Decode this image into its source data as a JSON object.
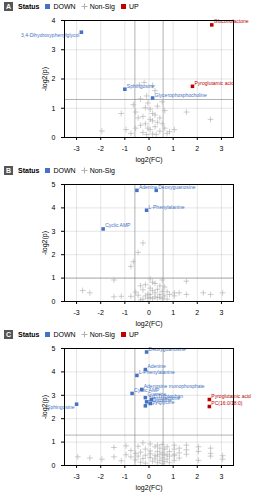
{
  "chart_data": [
    {
      "type": "scatter",
      "title": "A",
      "xlabel": "log2(FC)",
      "ylabel": "-log2(p)",
      "xlim": [
        -3.5,
        3.5
      ],
      "ylim": [
        0,
        4.0
      ],
      "xticks": [
        -3,
        -2,
        -1,
        0,
        1,
        2,
        3
      ],
      "yticks": [
        0,
        1,
        2,
        3,
        4
      ],
      "grid": true,
      "legend": "top",
      "legend_title": "Status",
      "reference_lines": {
        "x": [
          -0.585,
          0.585
        ],
        "y": [
          1.3
        ],
        "color": "#808080"
      },
      "series": [
        {
          "name": "DOWN",
          "color": "#4472C4",
          "marker": "square",
          "x": [
            -2.8,
            -1.0,
            0.15
          ],
          "values": [
            3.6,
            1.65,
            1.35
          ],
          "labels": [
            "3,4-Dihydroxyphenylglycol",
            "Sphingosine",
            "Glycerophosphocholine"
          ]
        },
        {
          "name": "Non-Sig",
          "color": "#B0B0B0",
          "marker": "plus",
          "x": [
            -0.4,
            -0.2,
            0.15,
            0.25,
            -0.1,
            -0.35,
            0.55,
            -0.65,
            -0.15,
            0.05,
            0.35,
            -0.05,
            0.65,
            -0.55,
            1.55,
            -1.15,
            0.15,
            0.25,
            -0.25,
            -0.45,
            0.45,
            0.05,
            0.15,
            0.35,
            -0.15,
            0.55,
            -0.35,
            0.25,
            -0.05,
            0.05,
            -0.55,
            0.65,
            -0.95,
            1.05,
            2.55,
            -1.95,
            0.45,
            -0.25,
            0.15,
            -0.75,
            0.75,
            0.85,
            -0.1,
            0.3
          ],
          "values": [
            1.8,
            1.88,
            1.78,
            1.6,
            1.42,
            1.32,
            1.22,
            1.12,
            1.02,
            0.97,
            1.07,
            1.18,
            0.92,
            0.87,
            0.87,
            0.82,
            0.82,
            0.77,
            0.72,
            0.67,
            0.67,
            0.62,
            0.57,
            0.52,
            0.47,
            0.47,
            0.42,
            0.37,
            0.32,
            0.27,
            0.32,
            0.32,
            0.27,
            0.27,
            0.62,
            0.22,
            0.22,
            0.17,
            0.12,
            0.14,
            0.14,
            0.2,
            0.1,
            0.1
          ]
        },
        {
          "name": "UP",
          "color": "#C00000",
          "marker": "square",
          "x": [
            2.6,
            1.8
          ],
          "values": [
            3.85,
            1.75
          ],
          "labels": [
            "Gluconolactone",
            "Pyroglutamic acid"
          ]
        }
      ]
    },
    {
      "type": "scatter",
      "title": "B",
      "xlabel": "log2(FC)",
      "ylabel": "-log2(p)",
      "xlim": [
        -3.5,
        3.5
      ],
      "ylim": [
        0,
        5.0
      ],
      "xticks": [
        -3,
        -2,
        -1,
        0,
        1,
        2,
        3
      ],
      "yticks": [
        0,
        1,
        2,
        3,
        4,
        5
      ],
      "grid": true,
      "legend": "top",
      "legend_title": "Status",
      "reference_lines": {
        "x": [
          -0.585,
          0.585
        ],
        "y": [
          1.0
        ],
        "color": "#808080"
      },
      "series": [
        {
          "name": "DOWN",
          "color": "#4472C4",
          "marker": "square",
          "x": [
            -0.5,
            0.3,
            -0.1,
            -1.9
          ],
          "values": [
            4.75,
            4.75,
            3.9,
            3.1
          ],
          "labels": [
            "Adenine",
            "Deoxyguanosine",
            "L-Phenylalanine",
            "Cyclic AMP"
          ]
        },
        {
          "name": "Non-Sig",
          "color": "#B0B0B0",
          "marker": "plus",
          "x": [
            -0.25,
            -0.45,
            -0.65,
            -0.75,
            0.05,
            0.55,
            1.55,
            -1.45,
            0.15,
            0.25,
            -0.15,
            0.45,
            -0.35,
            0.65,
            0.05,
            0.35,
            -0.25,
            0.15,
            0.55,
            0.75,
            -0.55,
            0.25,
            1.05,
            1.25,
            -0.05,
            0.05,
            0.45,
            0.85,
            -0.45,
            1.55,
            2.55,
            -0.15,
            0.65,
            1.05,
            -0.75,
            -1.15,
            -1.45,
            0.25,
            0.45,
            0.05,
            0.35,
            -0.05,
            0.15,
            0.55,
            -0.25,
            0.75,
            -0.35,
            -2.75,
            -2.45,
            2.25,
            3.05
          ],
          "values": [
            2.5,
            2.1,
            1.7,
            1.5,
            0.97,
            0.92,
            0.87,
            0.92,
            0.82,
            0.77,
            0.72,
            0.67,
            0.67,
            0.62,
            0.57,
            0.52,
            0.5,
            0.47,
            0.44,
            0.42,
            0.4,
            0.37,
            0.37,
            0.37,
            0.32,
            0.3,
            0.3,
            0.3,
            0.27,
            0.3,
            0.3,
            0.24,
            0.24,
            0.24,
            0.22,
            0.22,
            0.2,
            0.2,
            0.18,
            0.17,
            0.16,
            0.14,
            0.12,
            0.12,
            0.1,
            0.1,
            0.07,
            0.47,
            0.37,
            0.37,
            0.37
          ]
        }
      ]
    },
    {
      "type": "scatter",
      "title": "C",
      "xlabel": "log2(FC)",
      "ylabel": "-log2(p)",
      "xlim": [
        -3.5,
        3.5
      ],
      "ylim": [
        0,
        5.0
      ],
      "xticks": [
        -3,
        -2,
        -1,
        0,
        1,
        2,
        3
      ],
      "yticks": [
        0,
        1,
        2,
        3,
        4,
        5
      ],
      "grid": true,
      "legend": "top",
      "legend_title": "Status",
      "reference_lines": {
        "x": [
          -0.585,
          0.585
        ],
        "y": [
          1.3
        ],
        "color": "#808080"
      },
      "series": [
        {
          "name": "DOWN",
          "color": "#4472C4",
          "marker": "square",
          "x": [
            -0.1,
            -0.15,
            -0.5,
            -0.3,
            -0.7,
            -0.15,
            0.1,
            -0.1,
            0.05,
            -0.15,
            -3.0
          ],
          "values": [
            4.85,
            4.1,
            3.85,
            3.25,
            3.08,
            2.9,
            2.82,
            2.72,
            2.65,
            2.55,
            2.62
          ],
          "labels": [
            "Deoxyguanosine",
            "Adenine",
            "L-Phenylalanine",
            "Adenosine monophosphate",
            "Cyclic AMP",
            "Guanine",
            "L-Tryptophan",
            "Thyminedione",
            "Cytosine",
            "Tiglylglycine",
            "Sphingosine"
          ]
        },
        {
          "name": "Non-Sig",
          "color": "#B0B0B0",
          "marker": "plus",
          "x": [
            -0.25,
            0.05,
            0.55,
            0.35,
            1.05,
            1.55,
            -0.95,
            -0.45,
            0.25,
            0.75,
            2.05,
            -1.45,
            0.45,
            1.25,
            2.55,
            -0.15,
            0.65,
            1.05,
            1.55,
            -0.75,
            0.05,
            0.35,
            0.85,
            2.05,
            -0.35,
            0.55,
            1.25,
            -0.55,
            0.05,
            0.45,
            0.75,
            1.05,
            1.55,
            -0.95,
            -0.15,
            0.25,
            0.65,
            1.05,
            -0.45,
            0.35,
            0.85,
            2.55,
            -0.75,
            0.05,
            0.55,
            1.25,
            -0.25,
            0.25,
            0.75,
            -0.55,
            0.45,
            1.05,
            2.05,
            -1.15,
            0.15,
            0.65,
            -0.35,
            0.35,
            0.85,
            -0.15,
            0.55,
            3.05,
            -2.95,
            -2.45,
            -1.95,
            -1.45,
            2.55,
            3.05
          ],
          "values": [
            0.97,
            0.92,
            0.9,
            0.87,
            0.87,
            0.87,
            0.84,
            0.82,
            0.8,
            0.8,
            0.8,
            0.77,
            0.74,
            0.74,
            0.74,
            0.7,
            0.7,
            0.7,
            0.67,
            0.64,
            0.62,
            0.6,
            0.6,
            0.6,
            0.57,
            0.54,
            0.54,
            0.52,
            0.5,
            0.48,
            0.48,
            0.48,
            0.48,
            0.46,
            0.44,
            0.44,
            0.44,
            0.42,
            0.4,
            0.4,
            0.4,
            0.4,
            0.37,
            0.34,
            0.32,
            0.32,
            0.3,
            0.28,
            0.27,
            0.24,
            0.22,
            0.22,
            0.22,
            0.2,
            0.18,
            0.17,
            0.14,
            0.12,
            0.12,
            0.1,
            0.08,
            0.42,
            0.37,
            0.32,
            0.27,
            0.37,
            0.52,
            0.27
          ]
        },
        {
          "name": "UP",
          "color": "#C00000",
          "marker": "square",
          "x": [
            2.5,
            2.5
          ],
          "values": [
            2.82,
            2.52
          ],
          "labels": [
            "Pyroglutamic acid",
            "PC(16:0/18:0)"
          ]
        }
      ]
    }
  ]
}
